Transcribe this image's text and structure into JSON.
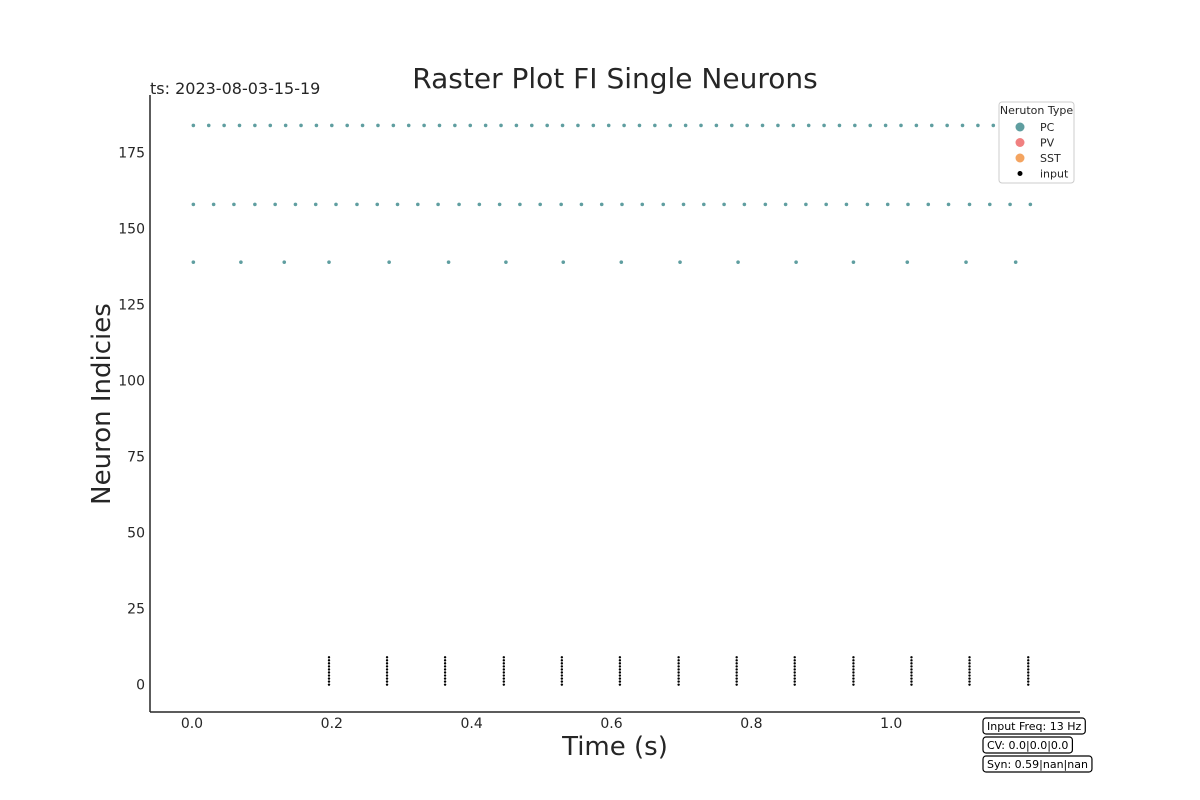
{
  "chart_data": {
    "type": "scatter",
    "title": "Raster Plot FI Single Neurons",
    "timestamp": "ts: 2023-08-03-15-19",
    "xlabel": "Time (s)",
    "ylabel": "Neuron Indicies",
    "xlim": [
      -0.06,
      1.27
    ],
    "ylim": [
      -9,
      194
    ],
    "xticks": [
      0.0,
      0.2,
      0.4,
      0.6,
      0.8,
      1.0
    ],
    "xtick_labels": [
      "0.0",
      "0.2",
      "0.4",
      "0.6",
      "0.8",
      "1.0"
    ],
    "yticks": [
      0,
      25,
      50,
      75,
      100,
      125,
      150,
      175
    ],
    "ytick_labels": [
      "0",
      "25",
      "50",
      "75",
      "100",
      "125",
      "150",
      "175"
    ],
    "grid": false,
    "legend": {
      "title": "Neruton Type",
      "placement": "top-right",
      "entries": [
        {
          "label": "PC",
          "color": "#5f9ea0"
        },
        {
          "label": "PV",
          "color": "#f08080"
        },
        {
          "label": "SST",
          "color": "#f4a460"
        },
        {
          "label": "input",
          "color": "#000000"
        }
      ]
    },
    "series": [
      {
        "name": "PC",
        "color": "#5f9ea0",
        "neuron_rows": [
          {
            "neuron": 184,
            "times": [
              0.002,
              0.024,
              0.046,
              0.068,
              0.09,
              0.112,
              0.134,
              0.156,
              0.178,
              0.2,
              0.222,
              0.244,
              0.266,
              0.288,
              0.31,
              0.332,
              0.354,
              0.376,
              0.398,
              0.42,
              0.442,
              0.464,
              0.486,
              0.508,
              0.53,
              0.552,
              0.574,
              0.596,
              0.618,
              0.64,
              0.662,
              0.684,
              0.706,
              0.728,
              0.75,
              0.772,
              0.794,
              0.816,
              0.838,
              0.86,
              0.882,
              0.904,
              0.926,
              0.948,
              0.97,
              0.992,
              1.014,
              1.036,
              1.058,
              1.08,
              1.102,
              1.124,
              1.146,
              1.168
            ]
          },
          {
            "neuron": 158,
            "times": [
              0.002,
              0.031,
              0.06,
              0.09,
              0.119,
              0.148,
              0.177,
              0.206,
              0.236,
              0.265,
              0.294,
              0.323,
              0.352,
              0.382,
              0.411,
              0.44,
              0.469,
              0.498,
              0.528,
              0.557,
              0.586,
              0.615,
              0.644,
              0.674,
              0.703,
              0.732,
              0.761,
              0.79,
              0.82,
              0.849,
              0.878,
              0.907,
              0.936,
              0.966,
              0.995,
              1.024,
              1.053,
              1.082,
              1.112,
              1.141,
              1.17,
              1.199
            ]
          },
          {
            "neuron": 139,
            "times": [
              0.002,
              0.07,
              0.132,
              0.196,
              0.282,
              0.367,
              0.449,
              0.531,
              0.614,
              0.698,
              0.781,
              0.864,
              0.946,
              1.023,
              1.107,
              1.178
            ]
          }
        ]
      },
      {
        "name": "input",
        "color": "#000000",
        "times": [
          0.196,
          0.279,
          0.362,
          0.446,
          0.529,
          0.612,
          0.696,
          0.779,
          0.862,
          0.946,
          1.029,
          1.112,
          1.196
        ],
        "neurons": [
          0,
          1,
          2,
          3,
          4,
          5,
          6,
          7,
          8,
          9
        ]
      }
    ]
  },
  "info_boxes": [
    {
      "text": "Input Freq: 13 Hz"
    },
    {
      "text": "CV: 0.0|0.0|0.0"
    },
    {
      "text": "Syn: 0.59|nan|nan"
    }
  ]
}
